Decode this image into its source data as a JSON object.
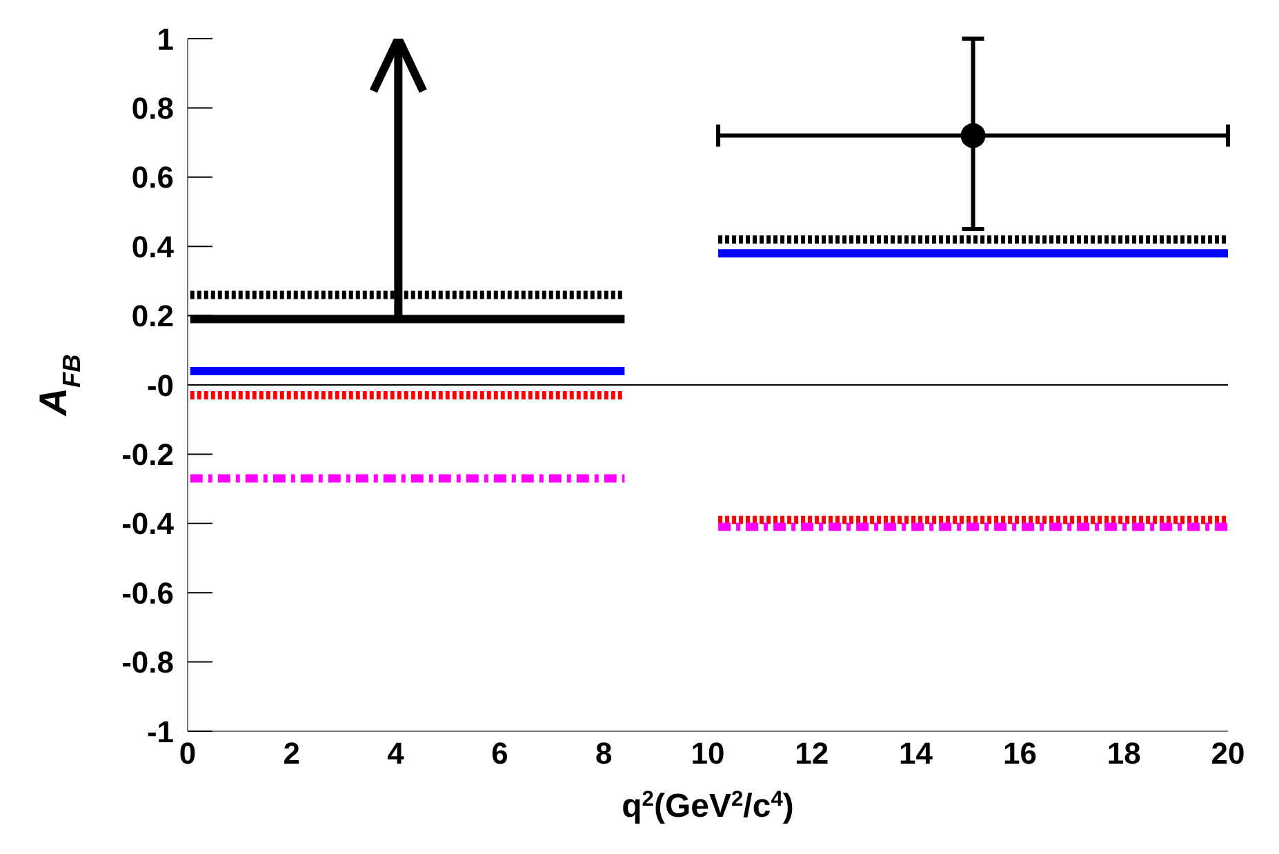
{
  "chart_data": {
    "type": "line",
    "xlabel": "q$^{2}$(GeV$^{2}$/c$^{4}$)",
    "ylabel": "A$_{FB}$",
    "xlim": [
      0,
      20
    ],
    "xticks": [
      0,
      2,
      4,
      6,
      8,
      10,
      12,
      14,
      16,
      18,
      20
    ],
    "ylim": [
      -1,
      1
    ],
    "yticks": [
      -1,
      -0.8,
      -0.6,
      -0.4,
      -0.2,
      {
        "value": 0,
        "label": "-0"
      },
      0.2,
      0.4,
      0.6,
      0.8,
      1
    ],
    "grid": false,
    "ref_lines": [
      {
        "axis": "y",
        "value": 0,
        "color": "#000000"
      }
    ],
    "series": [
      {
        "line_style": "dotted",
        "color": "#000000",
        "x": [
          0.05,
          8.4
        ],
        "values": [
          0.26,
          0.26
        ]
      },
      {
        "line_style": "solid",
        "color": "#000000",
        "x": [
          0.05,
          8.4
        ],
        "values": [
          0.19,
          0.19
        ]
      },
      {
        "line_style": "solid",
        "color": "#000000",
        "x": [
          4.05,
          4.05
        ],
        "values": [
          0.19,
          1
        ]
      },
      {
        "line_style": "solid",
        "color": "#0000ff",
        "x": [
          0.05,
          8.4
        ],
        "values": [
          0.04,
          0.04
        ]
      },
      {
        "line_style": "dotted",
        "color": "#ff0000",
        "x": [
          0.05,
          8.4
        ],
        "values": [
          -0.03,
          -0.03
        ]
      },
      {
        "line_style": "dashed",
        "color": "#ff00ff",
        "x": [
          0.05,
          8.4
        ],
        "values": [
          -0.27,
          -0.27
        ]
      },
      {
        "line_style": "dotted",
        "color": "#000000",
        "x": [
          10.2,
          20
        ],
        "values": [
          0.42,
          0.42
        ]
      },
      {
        "line_style": "solid",
        "color": "#0000ff",
        "x": [
          10.2,
          20
        ],
        "values": [
          0.38,
          0.38
        ]
      },
      {
        "line_style": "dotted",
        "color": "#ff0000",
        "x": [
          10.2,
          20
        ],
        "values": [
          -0.39,
          -0.39
        ]
      },
      {
        "line_style": "dashed",
        "color": "#ff00ff",
        "x": [
          10.2,
          20
        ],
        "values": [
          -0.41,
          -0.41
        ]
      },
      {
        "type": "scatter",
        "marker": "circle",
        "color": "#000000",
        "x": [
          15.1
        ],
        "values": [
          0.72
        ],
        "errors": [
          [
            0.45,
            1.0
          ]
        ],
        "xerrors": [
          [
            10.2,
            20
          ]
        ]
      }
    ]
  }
}
